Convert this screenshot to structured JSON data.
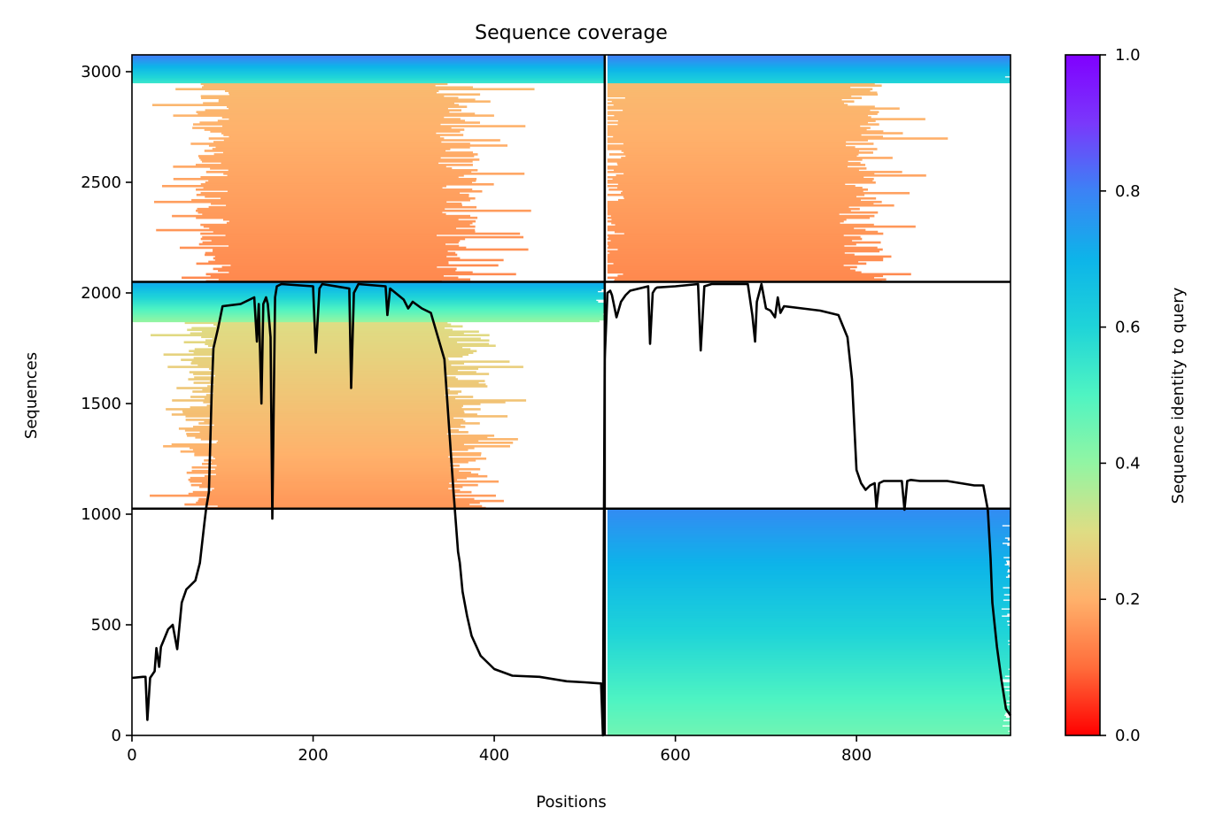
{
  "chart_data": {
    "type": "heatmap",
    "title": "Sequence coverage",
    "xlabel": "Positions",
    "ylabel": "Sequences",
    "xlim": [
      0,
      970
    ],
    "ylim": [
      0,
      3076
    ],
    "x_ticks": [
      0,
      200,
      400,
      600,
      800
    ],
    "y_ticks": [
      0,
      500,
      1000,
      1500,
      2000,
      2500,
      3000
    ],
    "x_tick_labels": [
      "0",
      "200",
      "400",
      "600",
      "800"
    ],
    "y_tick_labels": [
      "0",
      "500",
      "1000",
      "1500",
      "2000",
      "2500",
      "3000"
    ],
    "grid": false,
    "legend": "none",
    "colorbar": {
      "label": "Sequence identity to query",
      "range": [
        0,
        1
      ],
      "ticks": [
        0.0,
        0.2,
        0.4,
        0.6,
        0.8,
        1.0
      ],
      "tick_labels": [
        "0.0",
        "0.2",
        "0.4",
        "0.6",
        "0.8",
        "1.0"
      ],
      "colormap": "rainbow_r",
      "stops": [
        "#ff0000",
        "#ff6d3b",
        "#ffb16b",
        "#dedd84",
        "#92f5a3",
        "#4ff4c2",
        "#1fd4d8",
        "#0db4e9",
        "#3c82f5",
        "#7a38fb",
        "#8000ff"
      ]
    },
    "dividers": {
      "vertical": [
        522
      ],
      "horizontal": [
        1025,
        2050
      ]
    },
    "blocks": [
      {
        "x": [
          525,
          970
        ],
        "y": [
          0,
          1025
        ],
        "identity_bottom": 0.45,
        "identity_top": 0.78,
        "coverage": "full"
      },
      {
        "x": [
          0,
          522
        ],
        "y": [
          1025,
          1870
        ],
        "identity_bottom": 0.16,
        "identity_top": 0.3,
        "coverage": "partial",
        "core_x": [
          85,
          360
        ]
      },
      {
        "x": [
          0,
          522
        ],
        "y": [
          1870,
          2050
        ],
        "identity_bottom": 0.4,
        "identity_top": 0.72,
        "coverage": "full"
      },
      {
        "x": [
          0,
          522
        ],
        "y": [
          2050,
          2950
        ],
        "identity_bottom": 0.14,
        "identity_top": 0.22,
        "coverage": "partial",
        "core_x": [
          100,
          350
        ]
      },
      {
        "x": [
          0,
          522
        ],
        "y": [
          2950,
          3076
        ],
        "identity_bottom": 0.55,
        "identity_top": 0.8,
        "coverage": "full"
      },
      {
        "x": [
          525,
          970
        ],
        "y": [
          2050,
          2950
        ],
        "identity_bottom": 0.14,
        "identity_top": 0.22,
        "coverage": "partial",
        "core_x": [
          535,
          795
        ]
      },
      {
        "x": [
          525,
          970
        ],
        "y": [
          2950,
          3076
        ],
        "identity_bottom": 0.6,
        "identity_top": 0.8,
        "coverage": "full"
      }
    ],
    "coverage_line": {
      "x": [
        0,
        12,
        15,
        17,
        20,
        25,
        27,
        30,
        32,
        35,
        40,
        45,
        50,
        55,
        60,
        65,
        70,
        75,
        80,
        82,
        85,
        88,
        90,
        95,
        100,
        120,
        135,
        138,
        140,
        143,
        145,
        148,
        150,
        153,
        155,
        158,
        160,
        165,
        200,
        203,
        207,
        210,
        240,
        242,
        245,
        250,
        280,
        282,
        285,
        300,
        305,
        310,
        320,
        330,
        345,
        355,
        360,
        362,
        365,
        370,
        375,
        385,
        400,
        420,
        450,
        480,
        500,
        518,
        520,
        522,
        525,
        528,
        530,
        535,
        540,
        545,
        550,
        560,
        570,
        572,
        575,
        578,
        580,
        600,
        625,
        628,
        632,
        640,
        680,
        685,
        688,
        690,
        695,
        700,
        705,
        710,
        713,
        716,
        720,
        740,
        760,
        780,
        790,
        795,
        800,
        805,
        810,
        815,
        820,
        822,
        825,
        830,
        840,
        850,
        853,
        856,
        860,
        870,
        900,
        930,
        940,
        945,
        948,
        950,
        955,
        960,
        965,
        970
      ],
      "y": [
        260,
        265,
        265,
        70,
        260,
        290,
        395,
        310,
        400,
        430,
        480,
        500,
        390,
        600,
        660,
        680,
        700,
        780,
        960,
        1030,
        1100,
        1550,
        1750,
        1840,
        1940,
        1950,
        1980,
        1780,
        1950,
        1500,
        1950,
        1980,
        1950,
        1800,
        980,
        1980,
        2030,
        2040,
        2030,
        1730,
        2020,
        2040,
        2020,
        1570,
        2000,
        2040,
        2030,
        1900,
        2020,
        1970,
        1930,
        1960,
        1930,
        1910,
        1700,
        1100,
        830,
        780,
        650,
        540,
        450,
        360,
        300,
        270,
        265,
        245,
        240,
        235,
        0,
        1700,
        2000,
        2010,
        1990,
        1890,
        1960,
        1990,
        2010,
        2020,
        2030,
        1770,
        2000,
        2020,
        2025,
        2030,
        2040,
        1740,
        2030,
        2040,
        2040,
        1900,
        1780,
        1960,
        2040,
        1930,
        1920,
        1890,
        1980,
        1910,
        1940,
        1930,
        1920,
        1900,
        1800,
        1610,
        1200,
        1140,
        1110,
        1130,
        1140,
        1030,
        1140,
        1150,
        1150,
        1150,
        1020,
        1150,
        1155,
        1150,
        1150,
        1130,
        1130,
        1020,
        800,
        600,
        400,
        250,
        120,
        90
      ]
    }
  }
}
